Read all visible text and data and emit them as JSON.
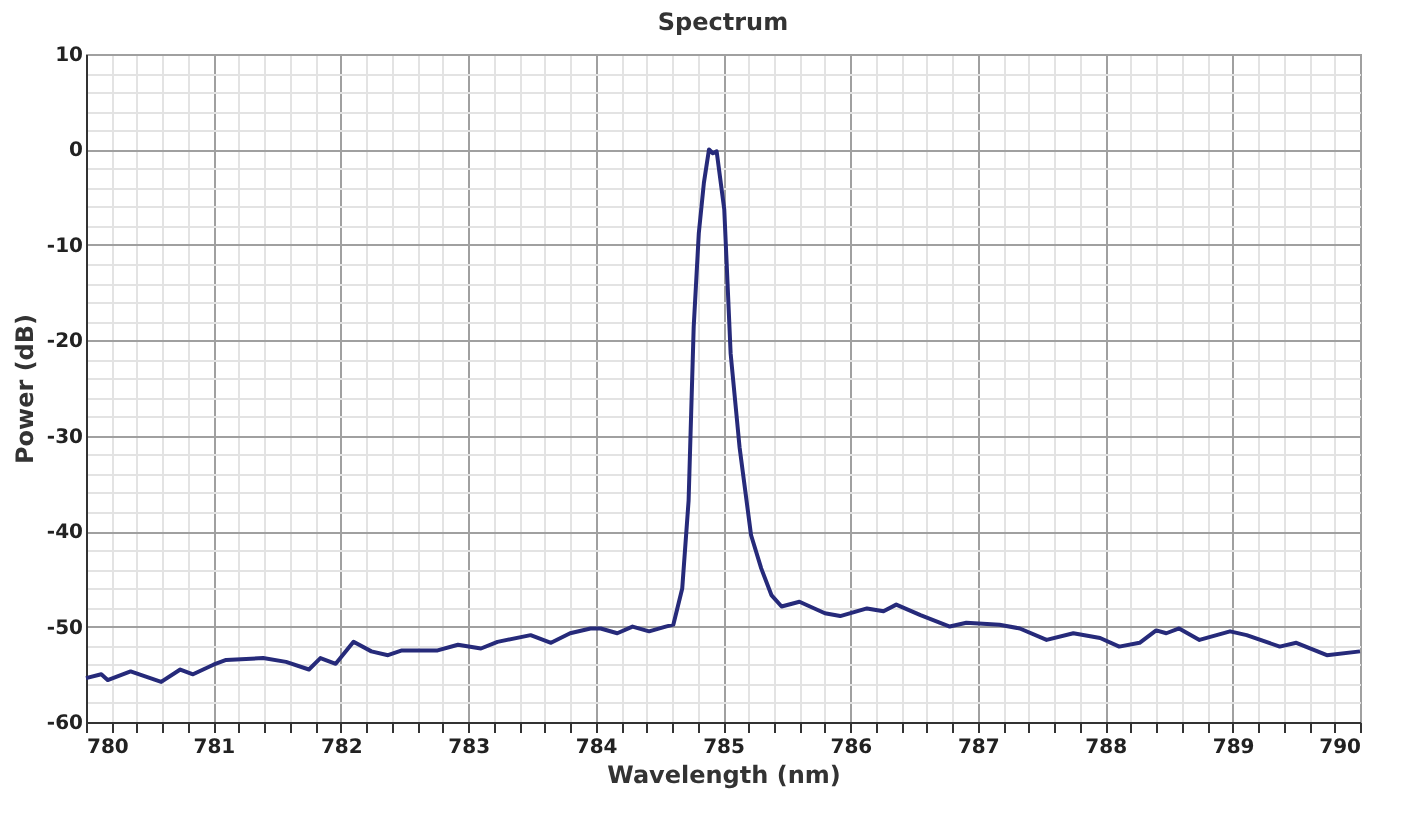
{
  "chart_data": {
    "type": "line",
    "title": "Spectrum",
    "xlabel": "Wavelength (nm)",
    "ylabel": "Power (dB)",
    "xlim": [
      780,
      790
    ],
    "ylim": [
      -60,
      10
    ],
    "xticks": [
      780,
      {
        "value": 780.2,
        "label": null
      },
      {
        "value": 780.4,
        "label": null
      },
      {
        "value": 780.6,
        "label": null
      },
      {
        "value": 780.8,
        "label": null
      },
      781,
      {
        "value": 781.2,
        "label": null
      },
      {
        "value": 781.4,
        "label": null
      },
      {
        "value": 781.6,
        "label": null
      },
      {
        "value": 781.8,
        "label": null
      },
      782,
      {
        "value": 782.2,
        "label": null
      },
      {
        "value": 782.4,
        "label": null
      },
      {
        "value": 782.6,
        "label": null
      },
      {
        "value": 782.8,
        "label": null
      },
      783,
      {
        "value": 783.2,
        "label": null
      },
      {
        "value": 783.4,
        "label": null
      },
      {
        "value": 783.6,
        "label": null
      },
      {
        "value": 783.8,
        "label": null
      },
      784,
      {
        "value": 784.2,
        "label": null
      },
      {
        "value": 784.4,
        "label": null
      },
      {
        "value": 784.6,
        "label": null
      },
      {
        "value": 784.8,
        "label": null
      },
      785,
      {
        "value": 785.2,
        "label": null
      },
      {
        "value": 785.4,
        "label": null
      },
      {
        "value": 785.6,
        "label": null
      },
      {
        "value": 785.8,
        "label": null
      },
      786,
      {
        "value": 786.2,
        "label": null
      },
      {
        "value": 786.4,
        "label": null
      },
      {
        "value": 786.6,
        "label": null
      },
      {
        "value": 786.8,
        "label": null
      },
      787,
      {
        "value": 787.2,
        "label": null
      },
      {
        "value": 787.4,
        "label": null
      },
      {
        "value": 787.6,
        "label": null
      },
      {
        "value": 787.8,
        "label": null
      },
      788,
      {
        "value": 788.2,
        "label": null
      },
      {
        "value": 788.4,
        "label": null
      },
      {
        "value": 788.6,
        "label": null
      },
      {
        "value": 788.8,
        "label": null
      },
      789,
      {
        "value": 789.2,
        "label": null
      },
      {
        "value": 789.4,
        "label": null
      },
      {
        "value": 789.6,
        "label": null
      },
      {
        "value": 789.8,
        "label": null
      },
      790
    ],
    "yticks": [
      10,
      {
        "value": 8,
        "label": null
      },
      {
        "value": 6,
        "label": null
      },
      {
        "value": 4,
        "label": null
      },
      {
        "value": 2,
        "label": null
      },
      0,
      {
        "value": -2,
        "label": null
      },
      {
        "value": -4,
        "label": null
      },
      {
        "value": -6,
        "label": null
      },
      {
        "value": -8,
        "label": null
      },
      -10,
      {
        "value": -12,
        "label": null
      },
      {
        "value": -14,
        "label": null
      },
      {
        "value": -16,
        "label": null
      },
      {
        "value": -18,
        "label": null
      },
      -20,
      {
        "value": -22,
        "label": null
      },
      {
        "value": -24,
        "label": null
      },
      {
        "value": -26,
        "label": null
      },
      {
        "value": -28,
        "label": null
      },
      -30,
      {
        "value": -32,
        "label": null
      },
      {
        "value": -34,
        "label": null
      },
      {
        "value": -36,
        "label": null
      },
      {
        "value": -38,
        "label": null
      },
      -40,
      {
        "value": -42,
        "label": null
      },
      {
        "value": -44,
        "label": null
      },
      {
        "value": -46,
        "label": null
      },
      {
        "value": -48,
        "label": null
      },
      -50,
      {
        "value": -52,
        "label": null
      },
      {
        "value": -54,
        "label": null
      },
      {
        "value": -56,
        "label": null
      },
      {
        "value": -58,
        "label": null
      },
      -60
    ],
    "grid": true,
    "marker": "none",
    "line_style": "solid",
    "series": [
      {
        "color": "#262a7a",
        "x": [
          780.0,
          780.12,
          780.17,
          780.35,
          780.59,
          780.74,
          780.84,
          781.0,
          781.1,
          781.39,
          781.57,
          781.75,
          781.84,
          781.96,
          782.1,
          782.24,
          782.37,
          782.48,
          782.76,
          782.92,
          783.1,
          783.23,
          783.49,
          783.65,
          783.8,
          783.96,
          784.04,
          784.17,
          784.29,
          784.42,
          784.55,
          784.61,
          784.68,
          784.73,
          784.77,
          784.81,
          784.85,
          784.89,
          784.92,
          784.95,
          785.01,
          785.06,
          785.13,
          785.22,
          785.3,
          785.38,
          785.46,
          785.6,
          785.8,
          785.92,
          786.13,
          786.26,
          786.36,
          786.55,
          786.78,
          786.91,
          787.17,
          787.33,
          787.54,
          787.75,
          787.96,
          788.11,
          788.27,
          788.4,
          788.48,
          788.58,
          788.74,
          788.98,
          789.11,
          789.37,
          789.5,
          789.74,
          790.0
        ],
        "values": [
          -55.4,
          -55,
          -55.6,
          -54.7,
          -55.8,
          -54.5,
          -55,
          -54,
          -53.5,
          -53.3,
          -53.7,
          -54.5,
          -53.3,
          -53.9,
          -51.6,
          -52.6,
          -53,
          -52.5,
          -52.5,
          -51.9,
          -52.3,
          -51.6,
          -50.9,
          -51.7,
          -50.7,
          -50.2,
          -50.2,
          -50.7,
          -50,
          -50.5,
          -50,
          -49.8,
          -46,
          -36.8,
          -18.6,
          -8.8,
          -3.5,
          0,
          -0.4,
          -0.2,
          -6.3,
          -21.4,
          -31.2,
          -40.4,
          -43.9,
          -46.7,
          -47.9,
          -47.4,
          -48.6,
          -48.9,
          -48.1,
          -48.4,
          -47.7,
          -48.8,
          -50,
          -49.6,
          -49.8,
          -50.2,
          -51.4,
          -50.7,
          -51.2,
          -52.1,
          -51.7,
          -50.4,
          -50.7,
          -50.2,
          -51.4,
          -50.5,
          -50.9,
          -52.1,
          -51.7,
          -53,
          -52.6
        ]
      }
    ]
  }
}
